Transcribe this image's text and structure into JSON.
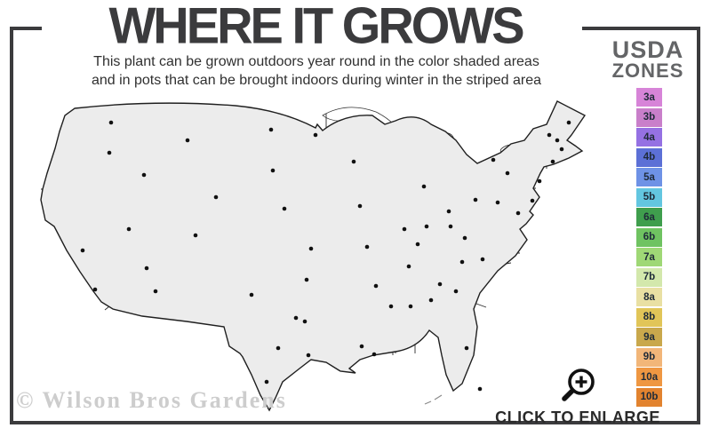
{
  "header": {
    "title": "WHERE IT GROWS",
    "subtitle_line1": "This plant can be grown outdoors year round in the color shaded areas",
    "subtitle_line2": "and in pots that can be brought indoors during winter in the striped area"
  },
  "legend": {
    "heading_line1": "USDA",
    "heading_line2": "ZONES",
    "zones": [
      {
        "label": "3a",
        "color": "#d784d8"
      },
      {
        "label": "3b",
        "color": "#c97fca"
      },
      {
        "label": "4a",
        "color": "#9571e3"
      },
      {
        "label": "4b",
        "color": "#5c70d6"
      },
      {
        "label": "5a",
        "color": "#6e92e6"
      },
      {
        "label": "5b",
        "color": "#63c6e0"
      },
      {
        "label": "6a",
        "color": "#3f9e4d"
      },
      {
        "label": "6b",
        "color": "#6fc361"
      },
      {
        "label": "7a",
        "color": "#9fd876"
      },
      {
        "label": "7b",
        "color": "#d3e8ac"
      },
      {
        "label": "8a",
        "color": "#e9e0a3"
      },
      {
        "label": "8b",
        "color": "#e1c558"
      },
      {
        "label": "9a",
        "color": "#c9a84c"
      },
      {
        "label": "9b",
        "color": "#f2b679"
      },
      {
        "label": "10a",
        "color": "#ef9742"
      },
      {
        "label": "10b",
        "color": "#e2832f"
      }
    ]
  },
  "map": {
    "watermark": "© Wilson Bros Gardens",
    "base_gray": "#ececec",
    "stripe_white": "#ffffff",
    "outline_color": "#1f1f1f",
    "state_line_color": "#2b2b2b",
    "gradient_stops": [
      "#8ed06f",
      "#abdc83",
      "#d3e79c",
      "#e4da84",
      "#ddbd5e",
      "#eeaa60",
      "#ed9145",
      "#e98038"
    ]
  },
  "footer": {
    "enlarge_label": "CLICK TO ENLARGE"
  }
}
